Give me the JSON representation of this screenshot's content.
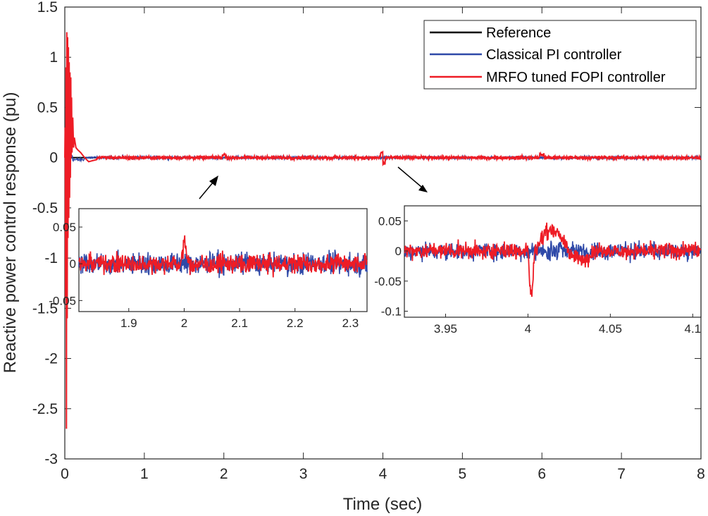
{
  "chart_data": {
    "type": "line",
    "xlabel": "Time (sec)",
    "ylabel": "Reactive power control response (pu)",
    "xlim": [
      0,
      8
    ],
    "ylim": [
      -3,
      1.5
    ],
    "xticks": [
      "0",
      "1",
      "2",
      "3",
      "4",
      "5",
      "6",
      "7",
      "8"
    ],
    "yticks": [
      "1.5",
      "1",
      "0.5",
      "0",
      "-0.5",
      "-1",
      "-1.5",
      "-2",
      "-2.5",
      "-3"
    ],
    "legend_position": "top-right",
    "series": [
      {
        "name": "Reference",
        "color": "#000000",
        "description_values": {
          "x": [
            0,
            8
          ],
          "y": [
            0,
            0
          ]
        }
      },
      {
        "name": "Classical PI controller",
        "color": "#2e49a8",
        "steady_noise_amplitude": 0.02
      },
      {
        "name": "MRFO tuned FOPI controller",
        "color": "#ee1c25",
        "initial_peak_max": 1.25,
        "initial_peak_min": -2.7,
        "steady_noise_amplitude": 0.02
      }
    ],
    "insets": [
      {
        "name": "zoom-around-2s",
        "xlim": [
          1.81,
          2.33
        ],
        "ylim": [
          -0.065,
          0.075
        ],
        "xticks": [
          "1.9",
          "2",
          "2.1",
          "2.2",
          "2.3"
        ],
        "yticks": [
          "0.05",
          "0",
          "-0.05"
        ],
        "events": [
          {
            "x": 2.0,
            "red_peak": 0.045
          }
        ]
      },
      {
        "name": "zoom-around-4s",
        "xlim": [
          3.925,
          4.105
        ],
        "ylim": [
          -0.11,
          0.075
        ],
        "xticks": [
          "3.95",
          "4",
          "4.05",
          "4.1"
        ],
        "yticks": [
          "0.05",
          "0",
          "-0.05",
          "-0.1"
        ],
        "events": [
          {
            "x": 4.005,
            "red_min": -0.085,
            "red_max_after": 0.05
          }
        ]
      }
    ]
  }
}
